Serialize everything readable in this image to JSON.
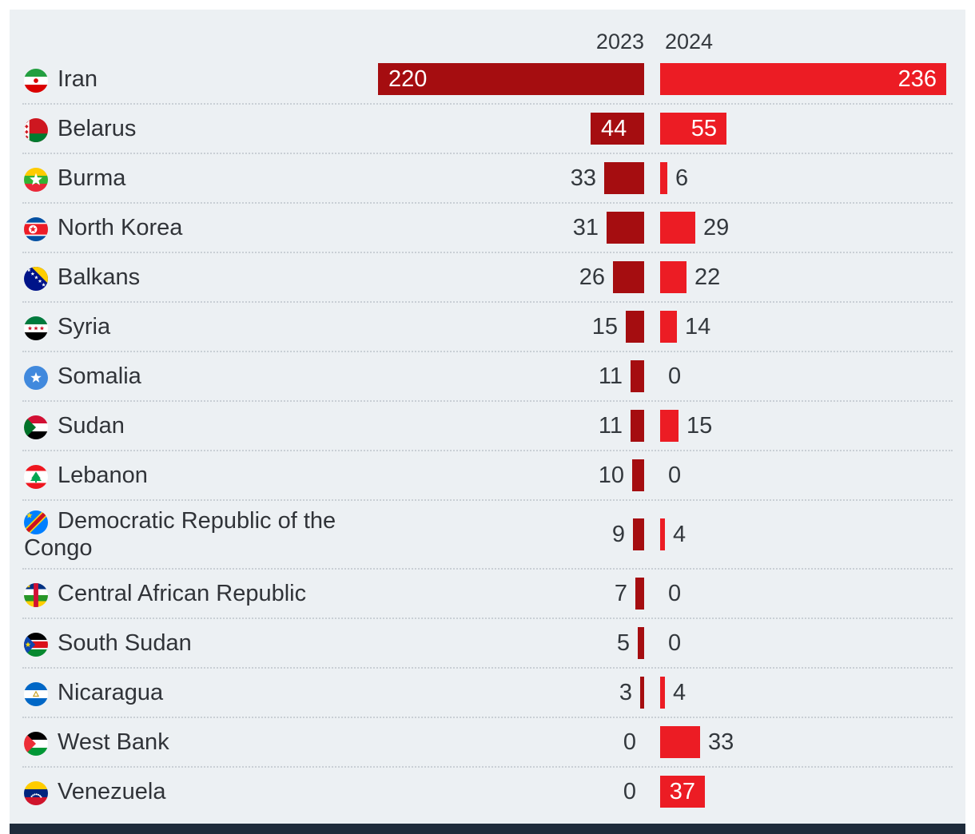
{
  "header": {
    "col2023": "2023",
    "col2024": "2024"
  },
  "colors": {
    "panel_bg": "#ecf0f3",
    "bar_2023": "#a50d10",
    "bar_2024": "#ec1c24",
    "footer_bar": "#1e2b3b",
    "text": "#33383d"
  },
  "rows": [
    {
      "country": "Iran",
      "flag": "iran",
      "v2023": 220,
      "v2024": 236
    },
    {
      "country": "Belarus",
      "flag": "belarus",
      "v2023": 44,
      "v2024": 55
    },
    {
      "country": "Burma",
      "flag": "burma",
      "v2023": 33,
      "v2024": 6
    },
    {
      "country": "North Korea",
      "flag": "north-korea",
      "v2023": 31,
      "v2024": 29
    },
    {
      "country": "Balkans",
      "flag": "balkans",
      "v2023": 26,
      "v2024": 22
    },
    {
      "country": "Syria",
      "flag": "syria",
      "v2023": 15,
      "v2024": 14
    },
    {
      "country": "Somalia",
      "flag": "somalia",
      "v2023": 11,
      "v2024": 0
    },
    {
      "country": "Sudan",
      "flag": "sudan",
      "v2023": 11,
      "v2024": 15
    },
    {
      "country": "Lebanon",
      "flag": "lebanon",
      "v2023": 10,
      "v2024": 0
    },
    {
      "country": "Democratic Republic of the Congo",
      "flag": "democratic-republic-of-the-congo",
      "v2023": 9,
      "v2024": 4,
      "tall": true
    },
    {
      "country": "Central African Republic",
      "flag": "central-african-republic",
      "v2023": 7,
      "v2024": 0
    },
    {
      "country": "South Sudan",
      "flag": "south-sudan",
      "v2023": 5,
      "v2024": 0
    },
    {
      "country": "Nicaragua",
      "flag": "nicaragua",
      "v2023": 3,
      "v2024": 4
    },
    {
      "country": "West Bank",
      "flag": "west-bank",
      "v2023": 0,
      "v2024": 33
    },
    {
      "country": "Venezuela",
      "flag": "venezuela",
      "v2023": 0,
      "v2024": 37
    }
  ],
  "chart_data": {
    "type": "bar",
    "orientation": "horizontal-diverging",
    "title": "",
    "categories": [
      "Iran",
      "Belarus",
      "Burma",
      "North Korea",
      "Balkans",
      "Syria",
      "Somalia",
      "Sudan",
      "Lebanon",
      "Democratic Republic of the Congo",
      "Central African Republic",
      "South Sudan",
      "Nicaragua",
      "West Bank",
      "Venezuela"
    ],
    "series": [
      {
        "name": "2023",
        "values": [
          220,
          44,
          33,
          31,
          26,
          15,
          11,
          11,
          10,
          9,
          7,
          5,
          3,
          0,
          0
        ],
        "color": "#a50d10",
        "direction": "right-aligned-to-center"
      },
      {
        "name": "2024",
        "values": [
          236,
          55,
          6,
          29,
          22,
          14,
          0,
          15,
          0,
          4,
          0,
          0,
          4,
          33,
          37
        ],
        "color": "#ec1c24",
        "direction": "left-aligned-from-center"
      }
    ],
    "value_labels": "shown at bar ends; inside bar in white when bar is wide enough",
    "xlim": [
      0,
      236
    ],
    "grid": false,
    "legend_position": "column headers above bars",
    "row_icons": "circular country flags"
  }
}
